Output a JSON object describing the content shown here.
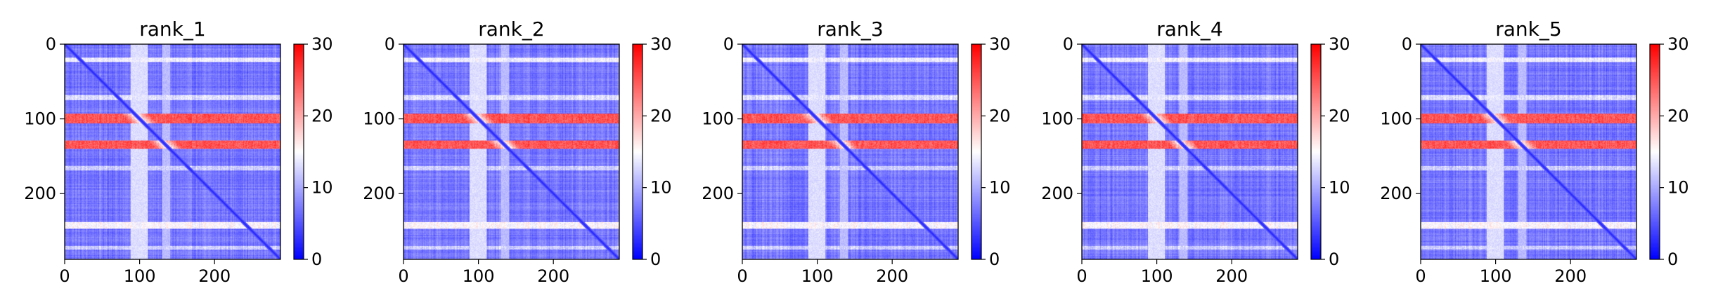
{
  "chart_data": [
    {
      "type": "heatmap",
      "title": "rank_1",
      "x_ticks": [
        0,
        100,
        200
      ],
      "y_ticks": [
        0,
        100,
        200
      ],
      "xlim": [
        0,
        288
      ],
      "ylim": [
        288,
        0
      ],
      "colorbar": {
        "ticks": [
          0,
          10,
          20,
          30
        ],
        "range": [
          0,
          30
        ],
        "colormap": "bwr"
      },
      "features": {
        "diagonal_value": 2,
        "background_value": 7,
        "high_rows": [
          [
            93,
            105,
            25
          ],
          [
            129,
            139,
            25
          ]
        ],
        "light_rows": [
          [
            18,
            23,
            14
          ],
          [
            68,
            74,
            13
          ],
          [
            163,
            168,
            12
          ],
          [
            238,
            246,
            15
          ],
          [
            270,
            274,
            12
          ]
        ],
        "light_columns": [
          [
            88,
            110,
            13
          ],
          [
            130,
            140,
            11
          ]
        ]
      }
    },
    {
      "type": "heatmap",
      "title": "rank_2",
      "x_ticks": [
        0,
        100,
        200
      ],
      "y_ticks": [
        0,
        100,
        200
      ],
      "xlim": [
        0,
        288
      ],
      "ylim": [
        288,
        0
      ],
      "colorbar": {
        "ticks": [
          0,
          10,
          20,
          30
        ],
        "range": [
          0,
          30
        ],
        "colormap": "bwr"
      },
      "features": {
        "diagonal_value": 2,
        "background_value": 7,
        "high_rows": [
          [
            93,
            105,
            25
          ],
          [
            129,
            139,
            25
          ]
        ],
        "light_rows": [
          [
            18,
            23,
            14
          ],
          [
            68,
            74,
            13
          ],
          [
            163,
            168,
            12
          ],
          [
            238,
            246,
            15
          ],
          [
            270,
            274,
            12
          ]
        ],
        "light_columns": [
          [
            88,
            110,
            13
          ],
          [
            130,
            140,
            11
          ]
        ]
      }
    },
    {
      "type": "heatmap",
      "title": "rank_3",
      "x_ticks": [
        0,
        100,
        200
      ],
      "y_ticks": [
        0,
        100,
        200
      ],
      "xlim": [
        0,
        288
      ],
      "ylim": [
        288,
        0
      ],
      "colorbar": {
        "ticks": [
          0,
          10,
          20,
          30
        ],
        "range": [
          0,
          30
        ],
        "colormap": "bwr"
      },
      "features": {
        "diagonal_value": 2,
        "background_value": 7,
        "high_rows": [
          [
            93,
            105,
            25
          ],
          [
            129,
            139,
            25
          ]
        ],
        "light_rows": [
          [
            18,
            23,
            14
          ],
          [
            68,
            74,
            13
          ],
          [
            163,
            168,
            12
          ],
          [
            238,
            246,
            15
          ],
          [
            270,
            274,
            12
          ]
        ],
        "light_columns": [
          [
            88,
            110,
            13
          ],
          [
            130,
            140,
            11
          ]
        ]
      }
    },
    {
      "type": "heatmap",
      "title": "rank_4",
      "x_ticks": [
        0,
        100,
        200
      ],
      "y_ticks": [
        0,
        100,
        200
      ],
      "xlim": [
        0,
        288
      ],
      "ylim": [
        288,
        0
      ],
      "colorbar": {
        "ticks": [
          0,
          10,
          20,
          30
        ],
        "range": [
          0,
          30
        ],
        "colormap": "bwr"
      },
      "features": {
        "diagonal_value": 2,
        "background_value": 7,
        "high_rows": [
          [
            93,
            105,
            25
          ],
          [
            129,
            139,
            25
          ]
        ],
        "light_rows": [
          [
            18,
            23,
            14
          ],
          [
            68,
            74,
            13
          ],
          [
            163,
            168,
            12
          ],
          [
            238,
            246,
            15
          ],
          [
            270,
            274,
            12
          ]
        ],
        "light_columns": [
          [
            88,
            110,
            13
          ],
          [
            130,
            140,
            11
          ]
        ]
      }
    },
    {
      "type": "heatmap",
      "title": "rank_5",
      "x_ticks": [
        0,
        100,
        200
      ],
      "y_ticks": [
        0,
        100,
        200
      ],
      "xlim": [
        0,
        288
      ],
      "ylim": [
        288,
        0
      ],
      "colorbar": {
        "ticks": [
          0,
          10,
          20,
          30
        ],
        "range": [
          0,
          30
        ],
        "colormap": "bwr"
      },
      "features": {
        "diagonal_value": 2,
        "background_value": 7,
        "high_rows": [
          [
            93,
            105,
            25
          ],
          [
            129,
            139,
            25
          ]
        ],
        "light_rows": [
          [
            18,
            23,
            14
          ],
          [
            68,
            74,
            13
          ],
          [
            163,
            168,
            12
          ],
          [
            238,
            246,
            15
          ],
          [
            270,
            274,
            12
          ]
        ],
        "light_columns": [
          [
            88,
            110,
            13
          ],
          [
            130,
            140,
            11
          ]
        ]
      }
    }
  ]
}
